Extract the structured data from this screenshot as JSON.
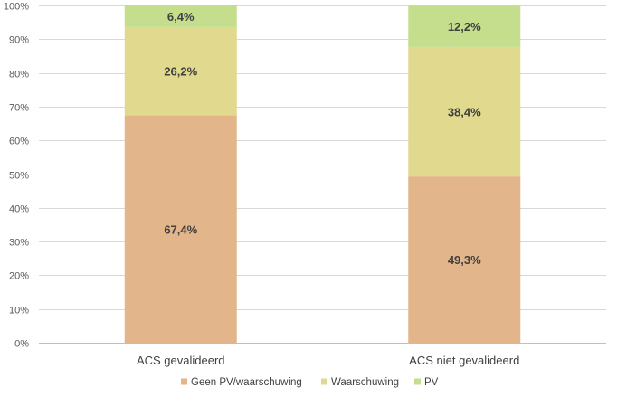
{
  "chart_data": {
    "type": "bar",
    "stacked": true,
    "percent": true,
    "categories": [
      "ACS gevalideerd",
      "ACS niet gevalideerd"
    ],
    "series": [
      {
        "name": "Geen PV/waarschuwing",
        "values": [
          67.4,
          49.3
        ],
        "labels": [
          "67,4%",
          "49,3%"
        ],
        "color": "#E2B58A"
      },
      {
        "name": "Waarschuwing",
        "values": [
          26.2,
          38.4
        ],
        "labels": [
          "26,2%",
          "38,4%"
        ],
        "color": "#E0D98E"
      },
      {
        "name": "PV",
        "values": [
          6.4,
          12.2
        ],
        "labels": [
          "6,4%",
          "12,2%"
        ],
        "color": "#C5DE8E"
      }
    ],
    "ylim": [
      0,
      100
    ],
    "yticks": [
      0,
      10,
      20,
      30,
      40,
      50,
      60,
      70,
      80,
      90,
      100
    ],
    "ytick_labels": [
      "0%",
      "10%",
      "20%",
      "30%",
      "40%",
      "50%",
      "60%",
      "70%",
      "80%",
      "90%",
      "100%"
    ],
    "grid": true,
    "legend": "bottom",
    "title": "",
    "xlabel": "",
    "ylabel": ""
  }
}
